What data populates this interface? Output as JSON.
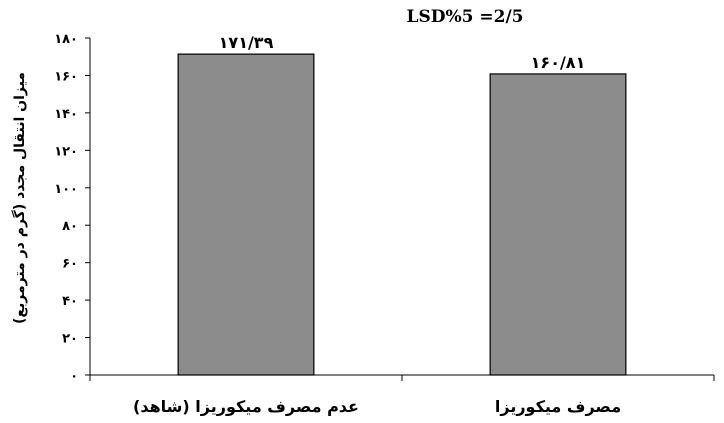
{
  "chart_data": {
    "type": "bar",
    "annotation": "LSD%5 =2/5",
    "ylabel": "میزان انتقال مجدد (گرم در مترمربع)",
    "xlabel": "",
    "categories": [
      "عدم مصرف میکوریزا (شاهد)",
      "مصرف میکوریزا"
    ],
    "values": [
      171.39,
      160.81
    ],
    "data_labels": [
      "۱۷۱/۳۹",
      "۱۶۰/۸۱"
    ],
    "ylim": [
      0,
      180
    ],
    "yticks": [
      0,
      20,
      40,
      60,
      80,
      100,
      120,
      140,
      160,
      180
    ],
    "ytick_labels": [
      "۰",
      "۲۰",
      "۴۰",
      "۶۰",
      "۸۰",
      "۱۰۰",
      "۱۲۰",
      "۱۴۰",
      "۱۶۰",
      "۱۸۰"
    ],
    "bar_color": "#8c8c8c",
    "bar_edge_color": "#000000",
    "grid": false,
    "legend": "none"
  }
}
